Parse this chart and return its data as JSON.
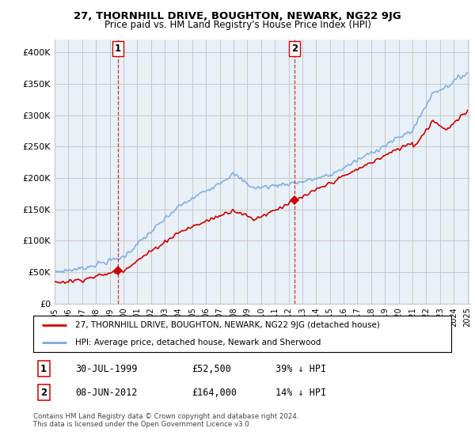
{
  "title": "27, THORNHILL DRIVE, BOUGHTON, NEWARK, NG22 9JG",
  "subtitle": "Price paid vs. HM Land Registry's House Price Index (HPI)",
  "ylim": [
    0,
    420000
  ],
  "yticks": [
    0,
    50000,
    100000,
    150000,
    200000,
    250000,
    300000,
    350000,
    400000
  ],
  "ytick_labels": [
    "£0",
    "£50K",
    "£100K",
    "£150K",
    "£200K",
    "£250K",
    "£300K",
    "£350K",
    "£400K"
  ],
  "background_color": "#ffffff",
  "chart_bg_color": "#e8f0f8",
  "grid_color": "#c8c8c8",
  "hpi_color": "#7aaadd",
  "price_color": "#cc0000",
  "sale1_year": 1999.583,
  "sale1_price": 52500,
  "sale2_year": 2012.417,
  "sale2_price": 164000,
  "legend_address": "27, THORNHILL DRIVE, BOUGHTON, NEWARK, NG22 9JG (detached house)",
  "legend_hpi": "HPI: Average price, detached house, Newark and Sherwood",
  "note1_label": "1",
  "note1_date": "30-JUL-1999",
  "note1_price": "£52,500",
  "note1_pct": "39% ↓ HPI",
  "note2_label": "2",
  "note2_date": "08-JUN-2012",
  "note2_price": "£164,000",
  "note2_pct": "14% ↓ HPI",
  "footer": "Contains HM Land Registry data © Crown copyright and database right 2024.\nThis data is licensed under the Open Government Licence v3.0."
}
